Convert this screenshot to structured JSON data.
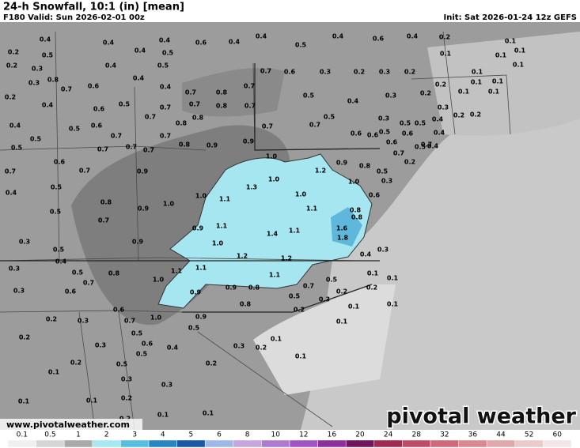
{
  "header": {
    "title": "24-h Snowfall, 10:1 (in) [mean]",
    "valid": "F180 Valid: Sun 2026-02-01 00z",
    "init": "Init: Sat 2026-01-24 12z GEFS"
  },
  "footer": {
    "url": "www.pivotalweather.com",
    "brand": "pivotal weather"
  },
  "colorbar": {
    "ticks": [
      "0.1",
      "0.5",
      "1",
      "2",
      "3",
      "4",
      "5",
      "6",
      "8",
      "10",
      "12",
      "16",
      "20",
      "24",
      "28",
      "32",
      "36",
      "44",
      "52",
      "60"
    ],
    "colors": [
      "#f0f0f0",
      "#d6d6d6",
      "#a9a9a9",
      "#a8e8f2",
      "#56bfe0",
      "#2a84c4",
      "#1a57a5",
      "#9db8e6",
      "#c7a6e0",
      "#b07ad0",
      "#a454c0",
      "#8e2fa0",
      "#70165e",
      "#a02a50",
      "#c04a6a",
      "#d06a7a",
      "#d88a90",
      "#e0a8a8",
      "#ebcaca",
      "#f4e6e6"
    ]
  },
  "map_labels": [
    "0.4",
    "0.4",
    "0.4",
    "0.4",
    "0.6",
    "0.4",
    "0.4",
    "0.5",
    "0.4",
    "0.6",
    "0.4",
    "0.2",
    "0.1",
    "0.2",
    "0.5",
    "0.4",
    "0.5",
    "0.5",
    "0.1",
    "0.1",
    "0.1",
    "0.2",
    "0.3",
    "0.4",
    "0.7",
    "0.6",
    "0.3",
    "0.2",
    "0.3",
    "0.2",
    "0.1",
    "0.1",
    "0.3",
    "0.8",
    "0.7",
    "0.6",
    "0.4",
    "0.7",
    "0.8",
    "0.7",
    "0.2",
    "0.1",
    "0.1",
    "0.2",
    "0.5",
    "0.7",
    "0.7",
    "0.8",
    "0.7",
    "0.5",
    "0.4",
    "0.3",
    "0.2",
    "0.1",
    "0.1",
    "0.4",
    "0.6",
    "0.3",
    "0.2",
    "0.2",
    "0.4",
    "0.5",
    "0.6",
    "0.7",
    "0.8",
    "0.8",
    "0.7",
    "0.7",
    "0.5",
    "0.3",
    "0.5",
    "0.5",
    "0.4",
    "0.5",
    "0.7",
    "0.7",
    "0.8",
    "0.9",
    "0.9",
    "0.6",
    "0.6",
    "0.5",
    "0.6",
    "0.7",
    "0.4",
    "0.6",
    "0.5",
    "0.7",
    "0.7",
    "0.7",
    "1.0",
    "0.7",
    "0.5",
    "0.4",
    "0.6",
    "0.9",
    "0.2",
    "0.7",
    "0.9",
    "1.0",
    "1.2",
    "0.8",
    "0.5",
    "0.7",
    "0.5",
    "1.3",
    "1.0",
    "0.3",
    "0.8",
    "0.9",
    "1.0",
    "1.0",
    "1.1",
    "1.0",
    "0.6",
    "0.4",
    "0.5",
    "0.7",
    "0.9",
    "1.1",
    "1.1",
    "1.6",
    "0.8",
    "0.8",
    "1.4",
    "1.1",
    "1.8",
    "0.3",
    "0.9",
    "1.0",
    "0.4",
    "0.3",
    "0.5",
    "1.2",
    "1.2",
    "0.4",
    "0.5",
    "0.8",
    "1.1",
    "1.1",
    "1.1",
    "0.1",
    "0.3",
    "0.7",
    "1.0",
    "0.5",
    "0.1",
    "0.3",
    "0.6",
    "0.9",
    "0.9",
    "0.8",
    "0.7",
    "0.5",
    "0.2",
    "0.2",
    "0.8",
    "0.3",
    "0.2",
    "0.1",
    "0.1",
    "0.6",
    "0.7",
    "1.0",
    "0.9",
    "0.1",
    "0.2",
    "0.3",
    "0.5",
    "0.5",
    "0.1",
    "0.2",
    "0.3",
    "0.6",
    "0.4",
    "0.3",
    "0.2",
    "0.1",
    "0.5",
    "0.2",
    "0.5",
    "0.2",
    "0.1",
    "0.3",
    "0.3",
    "0.1",
    "0.2",
    "0.1",
    "0.1",
    "0.2",
    "0.1"
  ]
}
